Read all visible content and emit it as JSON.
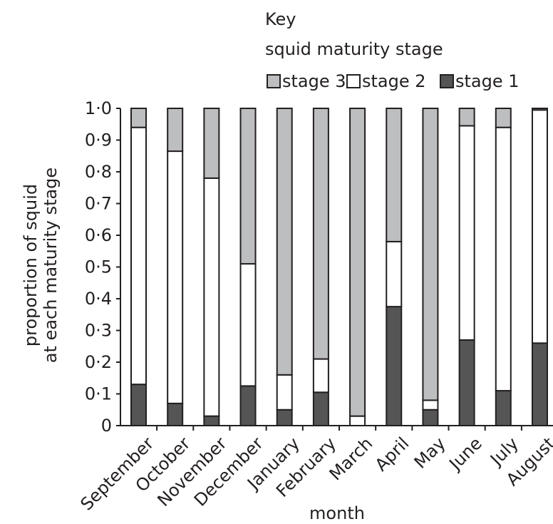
{
  "chart_data": {
    "type": "bar",
    "stacked": true,
    "legend_title": "Key",
    "legend_subtitle": "squid maturity stage",
    "legend_placement": "top-right",
    "xlabel": "month",
    "ylabel_line1": "proportion of squid",
    "ylabel_line2": "at each maturity stage",
    "ylim": [
      0,
      1.0
    ],
    "yticks": [
      "0",
      "0·1",
      "0·2",
      "0·3",
      "0·4",
      "0·5",
      "0·6",
      "0·7",
      "0·8",
      "0·9",
      "1·0"
    ],
    "grid": false,
    "categories": [
      "September",
      "October",
      "November",
      "December",
      "January",
      "February",
      "March",
      "April",
      "May",
      "June",
      "July",
      "August"
    ],
    "series": [
      {
        "name": "stage 1",
        "color": "#555555",
        "values": [
          0.13,
          0.07,
          0.03,
          0.125,
          0.05,
          0.105,
          0.0,
          0.375,
          0.05,
          0.27,
          0.11,
          0.26
        ]
      },
      {
        "name": "stage 2",
        "color": "#ffffff",
        "values": [
          0.81,
          0.795,
          0.75,
          0.385,
          0.11,
          0.105,
          0.03,
          0.205,
          0.03,
          0.675,
          0.83,
          0.735
        ]
      },
      {
        "name": "stage 3",
        "color": "#bcbec0",
        "values": [
          0.06,
          0.135,
          0.22,
          0.49,
          0.84,
          0.79,
          0.97,
          0.42,
          0.92,
          0.055,
          0.06,
          0.005
        ]
      }
    ],
    "legend_order": [
      "stage 3",
      "stage 2",
      "stage 1"
    ]
  }
}
